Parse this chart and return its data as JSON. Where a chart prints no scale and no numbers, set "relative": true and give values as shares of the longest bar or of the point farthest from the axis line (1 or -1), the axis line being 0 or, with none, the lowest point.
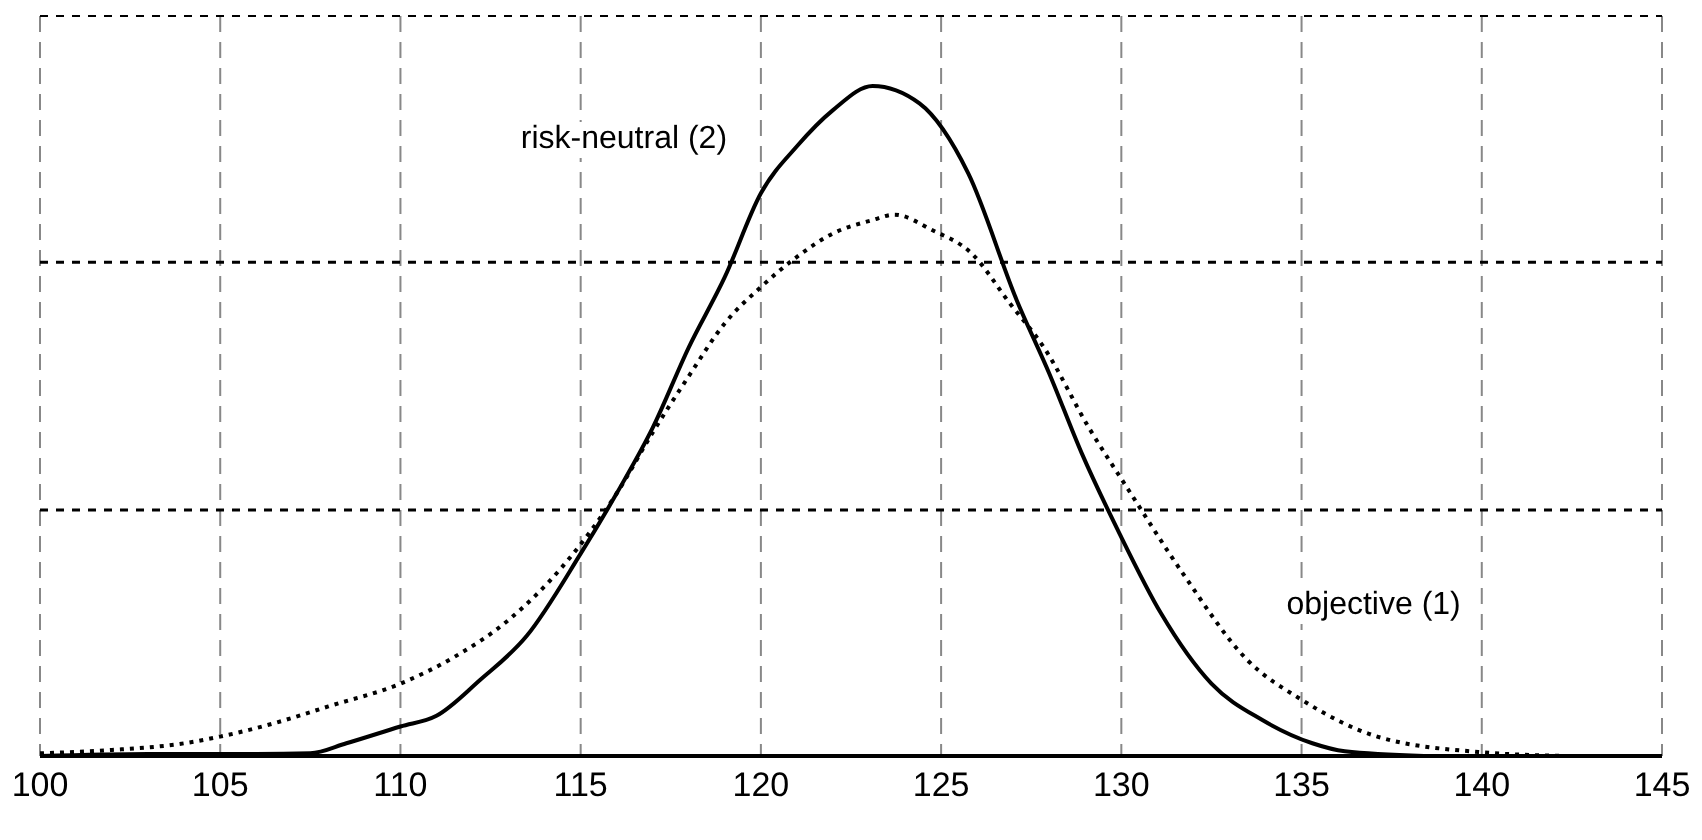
{
  "chart_data": {
    "type": "line",
    "relative": true,
    "xlim": [
      100,
      145
    ],
    "xticks": [
      100,
      105,
      110,
      115,
      120,
      125,
      130,
      135,
      140,
      145
    ],
    "grid": "x",
    "marker": "none",
    "ref_lines": [
      {
        "axis": "y",
        "value": 0.737,
        "color": "#000000",
        "line_style": "dashed"
      },
      {
        "axis": "y",
        "value": 0.367,
        "color": "#000000",
        "line_style": "dashed"
      }
    ],
    "series": [
      {
        "name": "risk-neutral (2)",
        "color": "#000000",
        "line_style": "solid",
        "x": [
          100,
          103,
          106,
          107.5,
          108.5,
          110,
          111,
          112.2,
          113.5,
          115,
          116,
          117,
          118,
          119,
          120,
          121,
          122,
          123.1,
          124.4,
          125.75,
          127.1,
          128,
          128.9,
          129.95,
          131.1,
          132.5,
          133.9,
          135.3,
          136.2,
          138.4
        ],
        "values": [
          0,
          0.003,
          0.003,
          0.004,
          0.019,
          0.044,
          0.06,
          0.113,
          0.179,
          0.302,
          0.392,
          0.49,
          0.61,
          0.715,
          0.84,
          0.91,
          0.964,
          1,
          0.974,
          0.87,
          0.68,
          0.571,
          0.452,
          0.332,
          0.213,
          0.108,
          0.054,
          0.019,
          0.007,
          0
        ]
      },
      {
        "name": "objective (1)",
        "color": "#000000",
        "line_style": "dotted",
        "x": [
          100,
          102,
          104,
          105,
          106.5,
          108,
          110,
          111.5,
          113,
          114.5,
          116,
          117,
          118,
          119,
          120,
          121,
          122,
          123.1,
          123.7,
          124.75,
          125.85,
          126.9,
          127.85,
          129.1,
          130.2,
          131.7,
          133.5,
          135,
          137.1,
          139.9,
          142.4
        ],
        "values": [
          0.004,
          0.009,
          0.019,
          0.029,
          0.049,
          0.074,
          0.108,
          0.148,
          0.203,
          0.283,
          0.392,
          0.483,
          0.567,
          0.646,
          0.7,
          0.745,
          0.78,
          0.8,
          0.808,
          0.785,
          0.75,
          0.676,
          0.61,
          0.49,
          0.397,
          0.273,
          0.143,
          0.084,
          0.029,
          0.006,
          0
        ]
      }
    ]
  }
}
